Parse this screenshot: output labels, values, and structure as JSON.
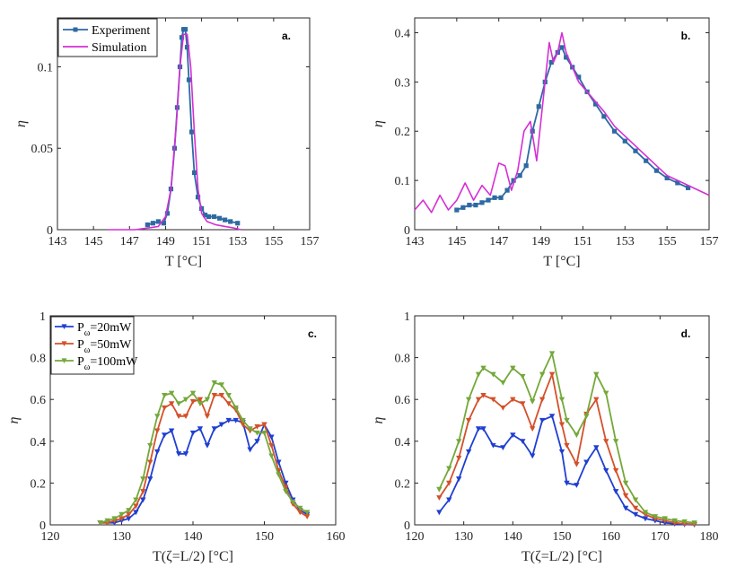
{
  "chart_data": [
    {
      "type": "line",
      "panel_label": "a.",
      "xlabel": "T [°C]",
      "ylabel": "η",
      "xlim": [
        143,
        157
      ],
      "ylim": [
        0,
        0.13
      ],
      "xticks": [
        "143",
        "145",
        "147",
        "149",
        "151",
        "153",
        "155",
        "157"
      ],
      "yticks": [
        {
          "v": 0,
          "t": "0"
        },
        {
          "v": 0.05,
          "t": "0.05"
        },
        {
          "v": 0.1,
          "t": "0.1"
        }
      ],
      "legend": "top-left",
      "series": [
        {
          "name": "Experiment",
          "color": "#2d6aa3",
          "marker": "dot",
          "x": [
            148.0,
            148.3,
            148.6,
            148.9,
            149.1,
            149.3,
            149.5,
            149.65,
            149.8,
            149.9,
            150.0,
            150.1,
            150.2,
            150.3,
            150.45,
            150.6,
            150.8,
            151.0,
            151.2,
            151.4,
            151.7,
            152.0,
            152.3,
            152.6,
            153.0
          ],
          "y": [
            0.003,
            0.004,
            0.005,
            0.004,
            0.01,
            0.025,
            0.05,
            0.075,
            0.1,
            0.118,
            0.123,
            0.123,
            0.112,
            0.092,
            0.06,
            0.035,
            0.02,
            0.013,
            0.009,
            0.008,
            0.008,
            0.007,
            0.006,
            0.005,
            0.004
          ]
        },
        {
          "name": "Simulation",
          "color": "#d42fd4",
          "marker": "none",
          "x": [
            145.8,
            146.5,
            147.3,
            148.0,
            148.6,
            149.0,
            149.3,
            149.6,
            149.8,
            150.0,
            150.2,
            150.4,
            150.6,
            150.8,
            151.0,
            151.3,
            151.8,
            152.3,
            152.8,
            153.2
          ],
          "y": [
            0,
            0,
            0,
            0.001,
            0.002,
            0.008,
            0.025,
            0.065,
            0.1,
            0.12,
            0.12,
            0.1,
            0.06,
            0.025,
            0.01,
            0.005,
            0.003,
            0.002,
            0.001,
            0
          ]
        }
      ]
    },
    {
      "type": "line",
      "panel_label": "b.",
      "xlabel": "T [°C]",
      "ylabel": "η",
      "xlim": [
        143,
        157
      ],
      "ylim": [
        0,
        0.43
      ],
      "xticks": [
        "143",
        "145",
        "147",
        "149",
        "151",
        "153",
        "155",
        "157"
      ],
      "yticks": [
        {
          "v": 0,
          "t": "0"
        },
        {
          "v": 0.1,
          "t": "0.1"
        },
        {
          "v": 0.2,
          "t": "0.2"
        },
        {
          "v": 0.3,
          "t": "0.3"
        },
        {
          "v": 0.4,
          "t": "0.4"
        }
      ],
      "series": [
        {
          "name": "Experiment",
          "color": "#2d6aa3",
          "marker": "dot",
          "x": [
            145.0,
            145.3,
            145.6,
            145.9,
            146.2,
            146.5,
            146.8,
            147.1,
            147.4,
            147.7,
            148.0,
            148.3,
            148.6,
            148.9,
            149.2,
            149.5,
            149.8,
            150.0,
            150.2,
            150.5,
            150.8,
            151.2,
            151.6,
            152.0,
            152.5,
            153.0,
            153.5,
            154.0,
            154.5,
            155.0,
            155.5,
            156.0
          ],
          "y": [
            0.04,
            0.045,
            0.05,
            0.05,
            0.055,
            0.06,
            0.065,
            0.065,
            0.08,
            0.1,
            0.11,
            0.13,
            0.2,
            0.25,
            0.3,
            0.34,
            0.36,
            0.37,
            0.35,
            0.33,
            0.31,
            0.28,
            0.255,
            0.23,
            0.2,
            0.18,
            0.16,
            0.14,
            0.12,
            0.105,
            0.095,
            0.085
          ]
        },
        {
          "name": "Simulation",
          "color": "#d42fd4",
          "marker": "none",
          "x": [
            143.0,
            143.4,
            143.8,
            144.2,
            144.6,
            145.0,
            145.4,
            145.8,
            146.2,
            146.6,
            147.0,
            147.3,
            147.6,
            147.9,
            148.2,
            148.5,
            148.8,
            149.1,
            149.4,
            149.6,
            149.8,
            150.0,
            150.2,
            150.5,
            150.8,
            151.2,
            151.6,
            152.0,
            152.5,
            153.0,
            153.5,
            154.0,
            154.5,
            155.0,
            155.5,
            156.0,
            156.5,
            157.0
          ],
          "y": [
            0.04,
            0.06,
            0.035,
            0.07,
            0.04,
            0.06,
            0.095,
            0.06,
            0.09,
            0.07,
            0.135,
            0.13,
            0.08,
            0.12,
            0.2,
            0.22,
            0.14,
            0.26,
            0.38,
            0.34,
            0.36,
            0.4,
            0.36,
            0.33,
            0.3,
            0.28,
            0.26,
            0.24,
            0.21,
            0.19,
            0.17,
            0.15,
            0.13,
            0.11,
            0.1,
            0.09,
            0.08,
            0.07
          ]
        }
      ]
    },
    {
      "type": "line",
      "panel_label": "c.",
      "xlabel": "T(ζ=L/2) [°C]",
      "ylabel": "η",
      "xlim": [
        120,
        160
      ],
      "ylim": [
        0,
        1
      ],
      "xticks": [
        "120",
        "130",
        "140",
        "150",
        "160"
      ],
      "yticks": [
        {
          "v": 0,
          "t": "0"
        },
        {
          "v": 0.2,
          "t": "0.2"
        },
        {
          "v": 0.4,
          "t": "0.4"
        },
        {
          "v": 0.6,
          "t": "0.6"
        },
        {
          "v": 0.8,
          "t": "0.8"
        },
        {
          "v": 1,
          "t": "1"
        }
      ],
      "legend": "top-left",
      "series": [
        {
          "name": "Pω=20mW",
          "legend_main": "P",
          "legend_sub": "ω",
          "legend_tail": "=20mW",
          "color": "#1f3fd1",
          "x": [
            127,
            128,
            129,
            130,
            131,
            132,
            133,
            134,
            135,
            136,
            137,
            138,
            139,
            140,
            141,
            142,
            143,
            144,
            145,
            146,
            147,
            148,
            149,
            150,
            151,
            152,
            153,
            154,
            155,
            156
          ],
          "y": [
            0.01,
            0.01,
            0.01,
            0.02,
            0.03,
            0.06,
            0.12,
            0.22,
            0.35,
            0.43,
            0.45,
            0.34,
            0.34,
            0.44,
            0.46,
            0.38,
            0.46,
            0.48,
            0.5,
            0.5,
            0.49,
            0.36,
            0.4,
            0.48,
            0.42,
            0.3,
            0.2,
            0.12,
            0.07,
            0.05
          ]
        },
        {
          "name": "Pω=50mW",
          "legend_main": "P",
          "legend_sub": "ω",
          "legend_tail": "=50mW",
          "color": "#d4502a",
          "x": [
            127,
            128,
            129,
            130,
            131,
            132,
            133,
            134,
            135,
            136,
            137,
            138,
            139,
            140,
            141,
            142,
            143,
            144,
            145,
            146,
            147,
            148,
            149,
            150,
            151,
            152,
            153,
            154,
            155,
            156
          ],
          "y": [
            0.01,
            0.01,
            0.02,
            0.03,
            0.05,
            0.09,
            0.16,
            0.3,
            0.45,
            0.56,
            0.58,
            0.52,
            0.52,
            0.59,
            0.6,
            0.52,
            0.62,
            0.62,
            0.58,
            0.55,
            0.48,
            0.45,
            0.47,
            0.48,
            0.38,
            0.26,
            0.18,
            0.1,
            0.06,
            0.04
          ]
        },
        {
          "name": "Pω=100mW",
          "legend_main": "P",
          "legend_sub": "ω",
          "legend_tail": "=100mW",
          "color": "#74a83a",
          "x": [
            127,
            128,
            129,
            130,
            131,
            132,
            133,
            134,
            135,
            136,
            137,
            138,
            139,
            140,
            141,
            142,
            143,
            144,
            145,
            146,
            147,
            148,
            149,
            150,
            151,
            152,
            153,
            154,
            155,
            156
          ],
          "y": [
            0.01,
            0.02,
            0.03,
            0.05,
            0.07,
            0.12,
            0.22,
            0.38,
            0.52,
            0.62,
            0.63,
            0.58,
            0.6,
            0.63,
            0.58,
            0.6,
            0.68,
            0.67,
            0.62,
            0.56,
            0.5,
            0.46,
            0.44,
            0.44,
            0.33,
            0.24,
            0.16,
            0.11,
            0.08,
            0.06
          ]
        }
      ]
    },
    {
      "type": "line",
      "panel_label": "d.",
      "xlabel": "T(ζ=L/2) [°C]",
      "ylabel": "η",
      "xlim": [
        120,
        180
      ],
      "ylim": [
        0,
        1
      ],
      "xticks": [
        "120",
        "130",
        "140",
        "150",
        "160",
        "170",
        "180"
      ],
      "yticks": [
        {
          "v": 0,
          "t": "0"
        },
        {
          "v": 0.2,
          "t": "0.2"
        },
        {
          "v": 0.4,
          "t": "0.4"
        },
        {
          "v": 0.6,
          "t": "0.6"
        },
        {
          "v": 0.8,
          "t": "0.8"
        },
        {
          "v": 1,
          "t": "1"
        }
      ],
      "series": [
        {
          "name": "Pω=20mW",
          "color": "#1f3fd1",
          "x": [
            125,
            127,
            129,
            131,
            133,
            134,
            136,
            138,
            140,
            142,
            144,
            146,
            148,
            150,
            151,
            153,
            155,
            157,
            159,
            161,
            163,
            165,
            167,
            169,
            171,
            173,
            175,
            177
          ],
          "y": [
            0.06,
            0.12,
            0.22,
            0.35,
            0.46,
            0.46,
            0.38,
            0.37,
            0.43,
            0.4,
            0.33,
            0.5,
            0.52,
            0.35,
            0.2,
            0.19,
            0.3,
            0.37,
            0.26,
            0.16,
            0.08,
            0.05,
            0.03,
            0.02,
            0.01,
            0.005,
            0.002,
            0.001
          ]
        },
        {
          "name": "Pω=50mW",
          "color": "#d4502a",
          "x": [
            125,
            127,
            129,
            131,
            133,
            134,
            136,
            138,
            140,
            142,
            144,
            146,
            148,
            150,
            151,
            153,
            155,
            157,
            159,
            161,
            163,
            165,
            167,
            169,
            171,
            173,
            175,
            177
          ],
          "y": [
            0.13,
            0.2,
            0.32,
            0.5,
            0.6,
            0.62,
            0.6,
            0.56,
            0.6,
            0.58,
            0.46,
            0.6,
            0.72,
            0.48,
            0.38,
            0.29,
            0.53,
            0.6,
            0.4,
            0.26,
            0.14,
            0.08,
            0.05,
            0.03,
            0.02,
            0.01,
            0.005,
            0.003
          ]
        },
        {
          "name": "Pω=100mW",
          "color": "#74a83a",
          "x": [
            125,
            127,
            129,
            131,
            133,
            134,
            136,
            138,
            140,
            142,
            144,
            146,
            148,
            150,
            151,
            153,
            155,
            157,
            159,
            161,
            163,
            165,
            167,
            169,
            171,
            173,
            175,
            177
          ],
          "y": [
            0.17,
            0.27,
            0.4,
            0.6,
            0.72,
            0.75,
            0.72,
            0.68,
            0.75,
            0.71,
            0.59,
            0.72,
            0.82,
            0.6,
            0.5,
            0.43,
            0.52,
            0.72,
            0.63,
            0.4,
            0.2,
            0.12,
            0.06,
            0.04,
            0.03,
            0.02,
            0.015,
            0.01
          ]
        }
      ]
    }
  ]
}
